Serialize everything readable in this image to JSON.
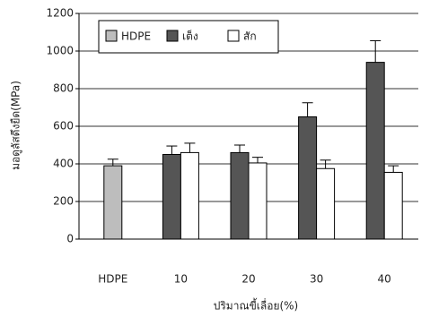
{
  "chart_data": {
    "type": "bar",
    "x_label": "ปริมาณขี้เลื่อย(%)",
    "y_label": "มอดูลัสดึงยืด(MPa)",
    "categories": [
      "HDPE",
      "10",
      "20",
      "30",
      "40"
    ],
    "series": [
      {
        "name": "HDPE",
        "color": "#bdbdbd",
        "values": [
          390,
          null,
          null,
          null,
          null
        ],
        "errors": [
          35,
          null,
          null,
          null,
          null
        ]
      },
      {
        "name": "เต็ง",
        "color": "#555555",
        "values": [
          null,
          450,
          460,
          650,
          940
        ],
        "errors": [
          null,
          45,
          40,
          75,
          115
        ]
      },
      {
        "name": "สัก",
        "color": "#ffffff",
        "values": [
          null,
          460,
          405,
          375,
          355
        ],
        "errors": [
          null,
          50,
          30,
          45,
          35
        ]
      }
    ],
    "ylim": [
      0,
      1200
    ],
    "yticks": [
      0,
      200,
      400,
      600,
      800,
      1000,
      1200
    ],
    "grid": true
  }
}
